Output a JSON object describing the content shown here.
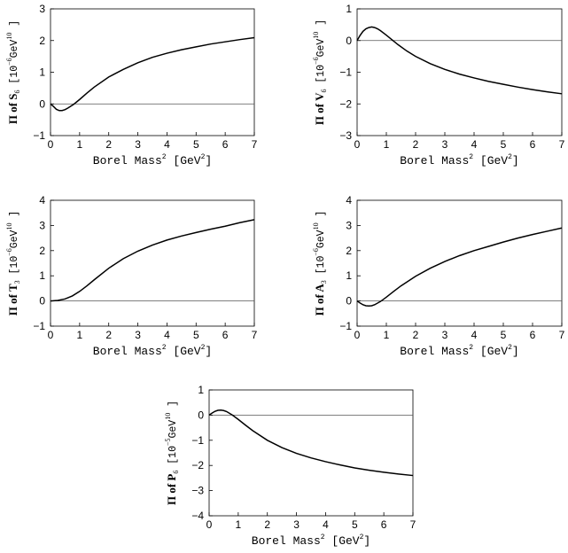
{
  "chart_data": [
    {
      "type": "line",
      "id": "S6",
      "ylabel_pi": "Π of S",
      "ylabel_sub": "6",
      "ylabel_unit_open": "[10",
      "ylabel_exp": "−6",
      "ylabel_unit_gev": "GeV",
      "ylabel_gev_exp": "10",
      "ylabel_unit_close": "]",
      "xlabel_main": "Borel Mass",
      "xlabel_sup": "2",
      "xlabel_unit_open": "[GeV",
      "xlabel_unit_sup": "2",
      "xlabel_unit_close": "]",
      "xlim": [
        0,
        7
      ],
      "ylim": [
        -1,
        3
      ],
      "xticks": [
        0,
        1,
        2,
        3,
        4,
        5,
        6,
        7
      ],
      "yticks": [
        -1,
        0,
        1,
        2,
        3
      ],
      "zero_line": true,
      "x": [
        0,
        0.1,
        0.2,
        0.3,
        0.4,
        0.5,
        0.6,
        0.8,
        1.0,
        1.25,
        1.5,
        2.0,
        2.5,
        3.0,
        3.5,
        4.0,
        4.5,
        5.0,
        5.5,
        6.0,
        6.5,
        7.0
      ],
      "y": [
        0,
        -0.08,
        -0.17,
        -0.21,
        -0.21,
        -0.18,
        -0.13,
        -0.01,
        0.14,
        0.34,
        0.53,
        0.85,
        1.09,
        1.3,
        1.47,
        1.6,
        1.71,
        1.8,
        1.89,
        1.96,
        2.03,
        2.09
      ]
    },
    {
      "type": "line",
      "id": "V6",
      "ylabel_pi": "Π of V",
      "ylabel_sub": "6",
      "ylabel_unit_open": "[10",
      "ylabel_exp": "−6",
      "ylabel_unit_gev": "GeV",
      "ylabel_gev_exp": "10",
      "ylabel_unit_close": "]",
      "xlabel_main": "Borel Mass",
      "xlabel_sup": "2",
      "xlabel_unit_open": "[GeV",
      "xlabel_unit_sup": "2",
      "xlabel_unit_close": "]",
      "xlim": [
        0,
        7
      ],
      "ylim": [
        -3,
        1
      ],
      "xticks": [
        0,
        1,
        2,
        3,
        4,
        5,
        6,
        7
      ],
      "yticks": [
        -3,
        -2,
        -1,
        0,
        1
      ],
      "zero_line": true,
      "x": [
        0,
        0.1,
        0.2,
        0.3,
        0.4,
        0.5,
        0.6,
        0.7,
        0.8,
        1.0,
        1.2,
        1.4,
        1.7,
        2.0,
        2.5,
        3.0,
        3.5,
        4.0,
        4.5,
        5.0,
        5.5,
        6.0,
        6.5,
        7.0
      ],
      "y": [
        0,
        0.16,
        0.29,
        0.37,
        0.41,
        0.43,
        0.41,
        0.37,
        0.31,
        0.17,
        0.02,
        -0.13,
        -0.33,
        -0.5,
        -0.73,
        -0.91,
        -1.06,
        -1.18,
        -1.29,
        -1.38,
        -1.47,
        -1.55,
        -1.62,
        -1.68
      ]
    },
    {
      "type": "line",
      "id": "T3",
      "ylabel_pi": "Π of T",
      "ylabel_sub": "3",
      "ylabel_unit_open": "[10",
      "ylabel_exp": "−6",
      "ylabel_unit_gev": "GeV",
      "ylabel_gev_exp": "10",
      "ylabel_unit_close": "]",
      "xlabel_main": "Borel Mass",
      "xlabel_sup": "2",
      "xlabel_unit_open": "[GeV",
      "xlabel_unit_sup": "2",
      "xlabel_unit_close": "]",
      "xlim": [
        0,
        7
      ],
      "ylim": [
        -1,
        4
      ],
      "xticks": [
        0,
        1,
        2,
        3,
        4,
        5,
        6,
        7
      ],
      "yticks": [
        -1,
        0,
        1,
        2,
        3,
        4
      ],
      "zero_line": true,
      "x": [
        0,
        0.25,
        0.5,
        0.75,
        1.0,
        1.25,
        1.5,
        2.0,
        2.5,
        3.0,
        3.5,
        4.0,
        4.5,
        5.0,
        5.5,
        6.0,
        6.5,
        7.0
      ],
      "y": [
        0,
        0.02,
        0.08,
        0.2,
        0.38,
        0.6,
        0.84,
        1.3,
        1.68,
        1.98,
        2.22,
        2.42,
        2.58,
        2.72,
        2.85,
        2.97,
        3.11,
        3.23
      ]
    },
    {
      "type": "line",
      "id": "A3",
      "ylabel_pi": "Π of A",
      "ylabel_sub": "3",
      "ylabel_unit_open": "[10",
      "ylabel_exp": "−6",
      "ylabel_unit_gev": "GeV",
      "ylabel_gev_exp": "10",
      "ylabel_unit_close": "]",
      "xlabel_main": "Borel Mass",
      "xlabel_sup": "2",
      "xlabel_unit_open": "[GeV",
      "xlabel_unit_sup": "2",
      "xlabel_unit_close": "]",
      "xlim": [
        0,
        7
      ],
      "ylim": [
        -1,
        4
      ],
      "xticks": [
        0,
        1,
        2,
        3,
        4,
        5,
        6,
        7
      ],
      "yticks": [
        -1,
        0,
        1,
        2,
        3,
        4
      ],
      "zero_line": true,
      "x": [
        0,
        0.1,
        0.2,
        0.3,
        0.4,
        0.5,
        0.6,
        0.8,
        1.0,
        1.25,
        1.5,
        2.0,
        2.5,
        3.0,
        3.5,
        4.0,
        4.5,
        5.0,
        5.5,
        6.0,
        6.5,
        7.0
      ],
      "y": [
        0,
        -0.08,
        -0.15,
        -0.19,
        -0.2,
        -0.19,
        -0.15,
        -0.02,
        0.15,
        0.38,
        0.6,
        0.98,
        1.3,
        1.57,
        1.8,
        2.0,
        2.17,
        2.34,
        2.5,
        2.64,
        2.77,
        2.9
      ]
    },
    {
      "type": "line",
      "id": "P6",
      "ylabel_pi": "Π of P",
      "ylabel_sub": "6",
      "ylabel_unit_open": "[10",
      "ylabel_exp": "−5",
      "ylabel_unit_gev": "GeV",
      "ylabel_gev_exp": "10",
      "ylabel_unit_close": "]",
      "xlabel_main": "Borel Mass",
      "xlabel_sup": "2",
      "xlabel_unit_open": "[GeV",
      "xlabel_unit_sup": "2",
      "xlabel_unit_close": "]",
      "xlim": [
        0,
        7
      ],
      "ylim": [
        -4,
        1
      ],
      "xticks": [
        0,
        1,
        2,
        3,
        4,
        5,
        6,
        7
      ],
      "yticks": [
        -4,
        -3,
        -2,
        -1,
        0,
        1
      ],
      "zero_line": true,
      "x": [
        0,
        0.1,
        0.2,
        0.3,
        0.4,
        0.5,
        0.6,
        0.8,
        1.0,
        1.25,
        1.5,
        2.0,
        2.5,
        3.0,
        3.5,
        4.0,
        4.5,
        5.0,
        5.5,
        6.0,
        6.5,
        7.0
      ],
      "y": [
        0,
        0.08,
        0.15,
        0.19,
        0.2,
        0.18,
        0.14,
        0.0,
        -0.17,
        -0.4,
        -0.62,
        -1.0,
        -1.29,
        -1.52,
        -1.7,
        -1.85,
        -1.98,
        -2.1,
        -2.19,
        -2.27,
        -2.34,
        -2.4
      ]
    }
  ]
}
